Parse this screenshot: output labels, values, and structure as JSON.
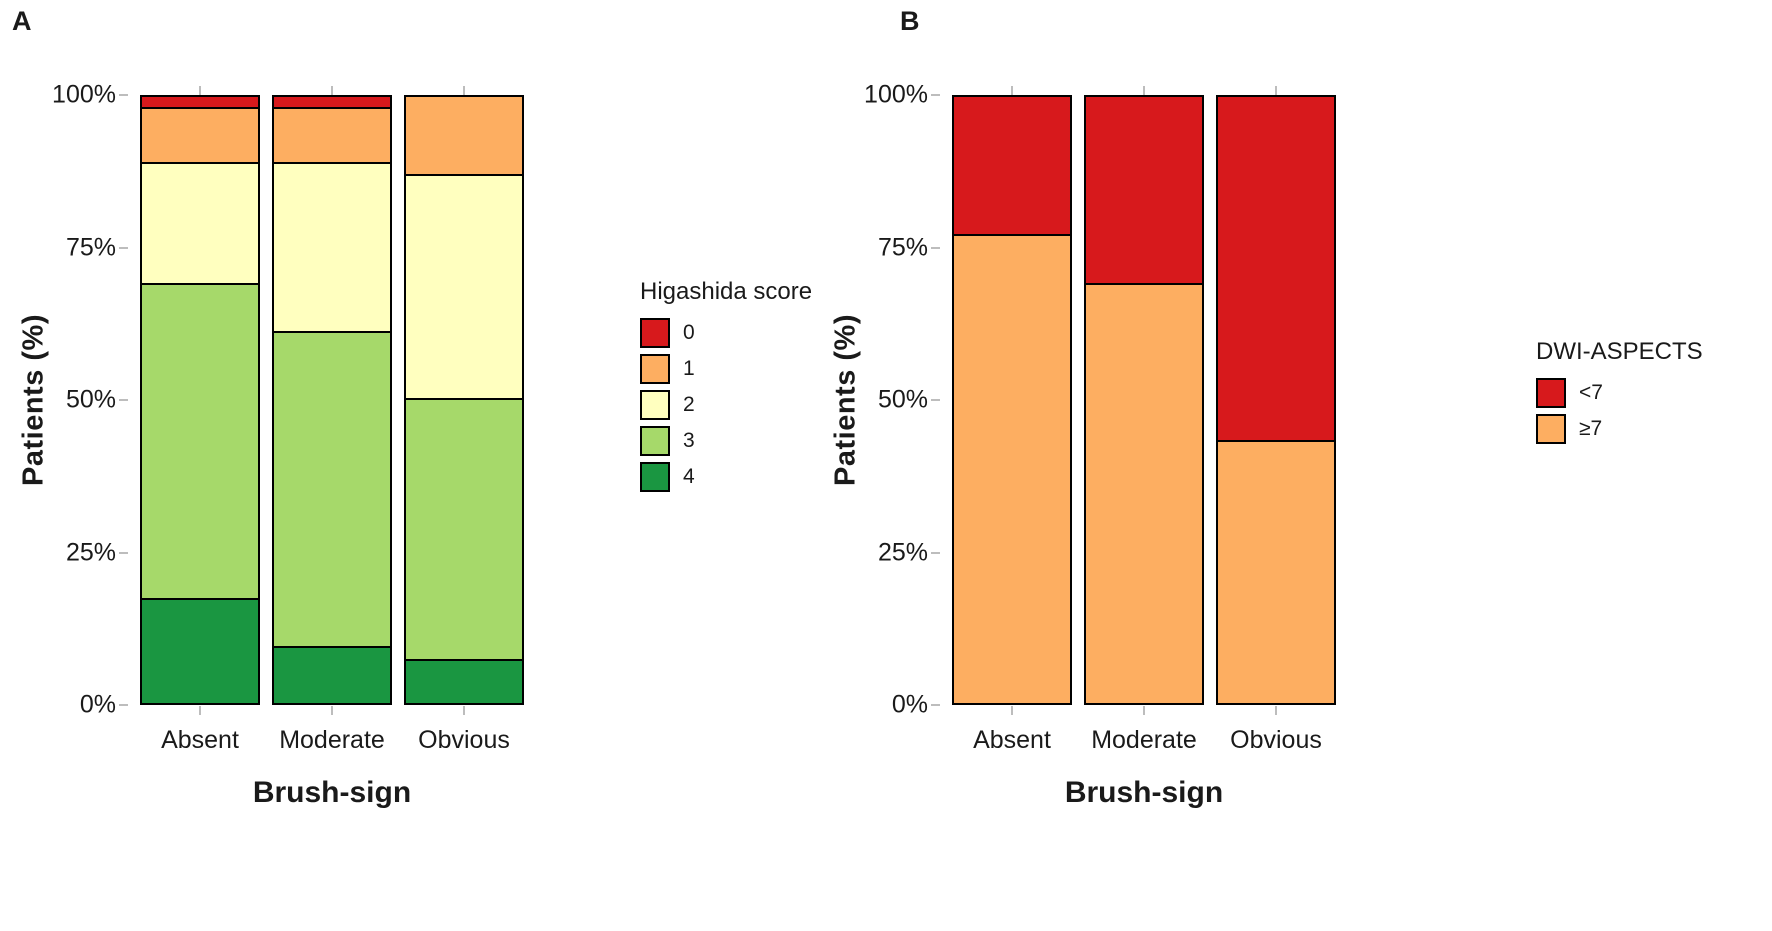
{
  "chart_data": [
    {
      "type": "bar",
      "stacked": true,
      "panel_label": "A",
      "title": "",
      "xlabel": "Brush-sign",
      "ylabel": "Patients (%)",
      "ylim": [
        0,
        100
      ],
      "grid": false,
      "legend_title": "Higashida score",
      "legend_position": "right",
      "categories": [
        "Absent",
        "Moderate",
        "Obvious"
      ],
      "yticks": [
        {
          "value": 0,
          "label": "0%"
        },
        {
          "value": 25,
          "label": "25%"
        },
        {
          "value": 50,
          "label": "50%"
        },
        {
          "value": 75,
          "label": "75%"
        },
        {
          "value": 100,
          "label": "100%"
        }
      ],
      "series": [
        {
          "name": "0",
          "color": "#D7191C",
          "values": [
            2,
            2,
            0
          ]
        },
        {
          "name": "1",
          "color": "#FDAE61",
          "values": [
            9,
            9,
            13
          ]
        },
        {
          "name": "2",
          "color": "#FFFFBF",
          "values": [
            20,
            28,
            37
          ]
        },
        {
          "name": "3",
          "color": "#A6D96A",
          "values": [
            52,
            52,
            43
          ]
        },
        {
          "name": "4",
          "color": "#1A9641",
          "values": [
            17,
            9,
            7
          ]
        }
      ]
    },
    {
      "type": "bar",
      "stacked": true,
      "panel_label": "B",
      "title": "",
      "xlabel": "Brush-sign",
      "ylabel": "Patients (%)",
      "ylim": [
        0,
        100
      ],
      "grid": false,
      "legend_title": "DWI-ASPECTS",
      "legend_position": "right",
      "categories": [
        "Absent",
        "Moderate",
        "Obvious"
      ],
      "yticks": [
        {
          "value": 0,
          "label": "0%"
        },
        {
          "value": 25,
          "label": "25%"
        },
        {
          "value": 50,
          "label": "50%"
        },
        {
          "value": 75,
          "label": "75%"
        },
        {
          "value": 100,
          "label": "100%"
        }
      ],
      "series": [
        {
          "name": "<7",
          "color": "#D7191C",
          "values": [
            23,
            31,
            57
          ]
        },
        {
          "name": "≥7",
          "color": "#FDAE61",
          "values": [
            77,
            69,
            43
          ]
        }
      ]
    }
  ]
}
